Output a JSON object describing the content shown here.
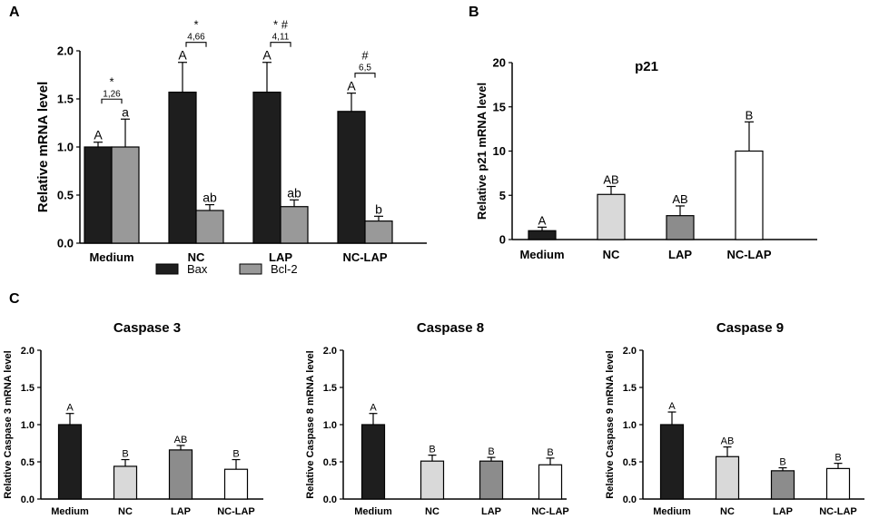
{
  "panels": {
    "A": "A",
    "B": "B",
    "C": "C"
  },
  "chart_data": [
    {
      "id": "A",
      "type": "bar",
      "title": "",
      "xlabel": "",
      "ylabel": "Relative mRNA level",
      "ylim": [
        0,
        2.0
      ],
      "yticks": [
        "0.0",
        "0.5",
        "1.0",
        "1.5",
        "2.0"
      ],
      "categories": [
        "Medium",
        "NC",
        "LAP",
        "NC-LAP"
      ],
      "legend": {
        "position": "bottom"
      },
      "series": [
        {
          "name": "Bax",
          "color": "#1e1e1e",
          "values": [
            1.0,
            1.57,
            1.57,
            1.37
          ],
          "errors": [
            0.05,
            0.31,
            0.31,
            0.19
          ],
          "labels": [
            "A",
            "A",
            "A",
            "A"
          ]
        },
        {
          "name": "Bcl-2",
          "color": "#999999",
          "values": [
            1.0,
            0.34,
            0.38,
            0.23
          ],
          "errors": [
            0.29,
            0.06,
            0.07,
            0.05
          ],
          "labels": [
            "a",
            "ab",
            "ab",
            "b"
          ]
        }
      ],
      "annotations": [
        {
          "symbol": "*",
          "fold": "1,26"
        },
        {
          "symbol": "*",
          "fold": "4,66"
        },
        {
          "symbol": "* #",
          "fold": "4,11"
        },
        {
          "symbol": "#",
          "fold": "6,5"
        }
      ]
    },
    {
      "id": "B",
      "type": "bar",
      "title": "p21",
      "xlabel": "",
      "ylabel": "Relative p21 mRNA level",
      "ylim": [
        0,
        20
      ],
      "yticks": [
        "0",
        "5",
        "10",
        "15",
        "20"
      ],
      "categories": [
        "Medium",
        "NC",
        "LAP",
        "NC-LAP"
      ],
      "colors": [
        "#1e1e1e",
        "#d9d9d9",
        "#8c8c8c",
        "#ffffff"
      ],
      "values": [
        1.0,
        5.1,
        2.7,
        10.0
      ],
      "errors": [
        0.4,
        0.9,
        1.1,
        3.3
      ],
      "labels": [
        "A",
        "AB",
        "AB",
        "B"
      ]
    },
    {
      "id": "C1",
      "type": "bar",
      "title": "Caspase 3",
      "xlabel": "",
      "ylabel": "Relative Caspase 3 mRNA level",
      "ylim": [
        0,
        2.0
      ],
      "yticks": [
        "0.0",
        "0.5",
        "1.0",
        "1.5",
        "2.0"
      ],
      "categories": [
        "Medium",
        "NC",
        "LAP",
        "NC-LAP"
      ],
      "colors": [
        "#1e1e1e",
        "#d9d9d9",
        "#8c8c8c",
        "#ffffff"
      ],
      "values": [
        1.0,
        0.44,
        0.66,
        0.4
      ],
      "errors": [
        0.15,
        0.09,
        0.06,
        0.13
      ],
      "labels": [
        "A",
        "B",
        "AB",
        "B"
      ]
    },
    {
      "id": "C2",
      "type": "bar",
      "title": "Caspase 8",
      "xlabel": "",
      "ylabel": "Relative Caspase 8 mRNA level",
      "ylim": [
        0,
        2.0
      ],
      "yticks": [
        "0.0",
        "0.5",
        "1.0",
        "1.5",
        "2.0"
      ],
      "categories": [
        "Medium",
        "NC",
        "LAP",
        "NC-LAP"
      ],
      "colors": [
        "#1e1e1e",
        "#d9d9d9",
        "#8c8c8c",
        "#ffffff"
      ],
      "values": [
        1.0,
        0.51,
        0.51,
        0.46
      ],
      "errors": [
        0.15,
        0.08,
        0.05,
        0.09
      ],
      "labels": [
        "A",
        "B",
        "B",
        "B"
      ]
    },
    {
      "id": "C3",
      "type": "bar",
      "title": "Caspase 9",
      "xlabel": "",
      "ylabel": "Relative Caspase 9 mRNA level",
      "ylim": [
        0,
        2.0
      ],
      "yticks": [
        "0.0",
        "0.5",
        "1.0",
        "1.5",
        "2.0"
      ],
      "categories": [
        "Medium",
        "NC",
        "LAP",
        "NC-LAP"
      ],
      "colors": [
        "#1e1e1e",
        "#d9d9d9",
        "#8c8c8c",
        "#ffffff"
      ],
      "values": [
        1.0,
        0.57,
        0.38,
        0.41
      ],
      "errors": [
        0.17,
        0.13,
        0.04,
        0.07
      ],
      "labels": [
        "A",
        "AB",
        "B",
        "B"
      ]
    }
  ]
}
